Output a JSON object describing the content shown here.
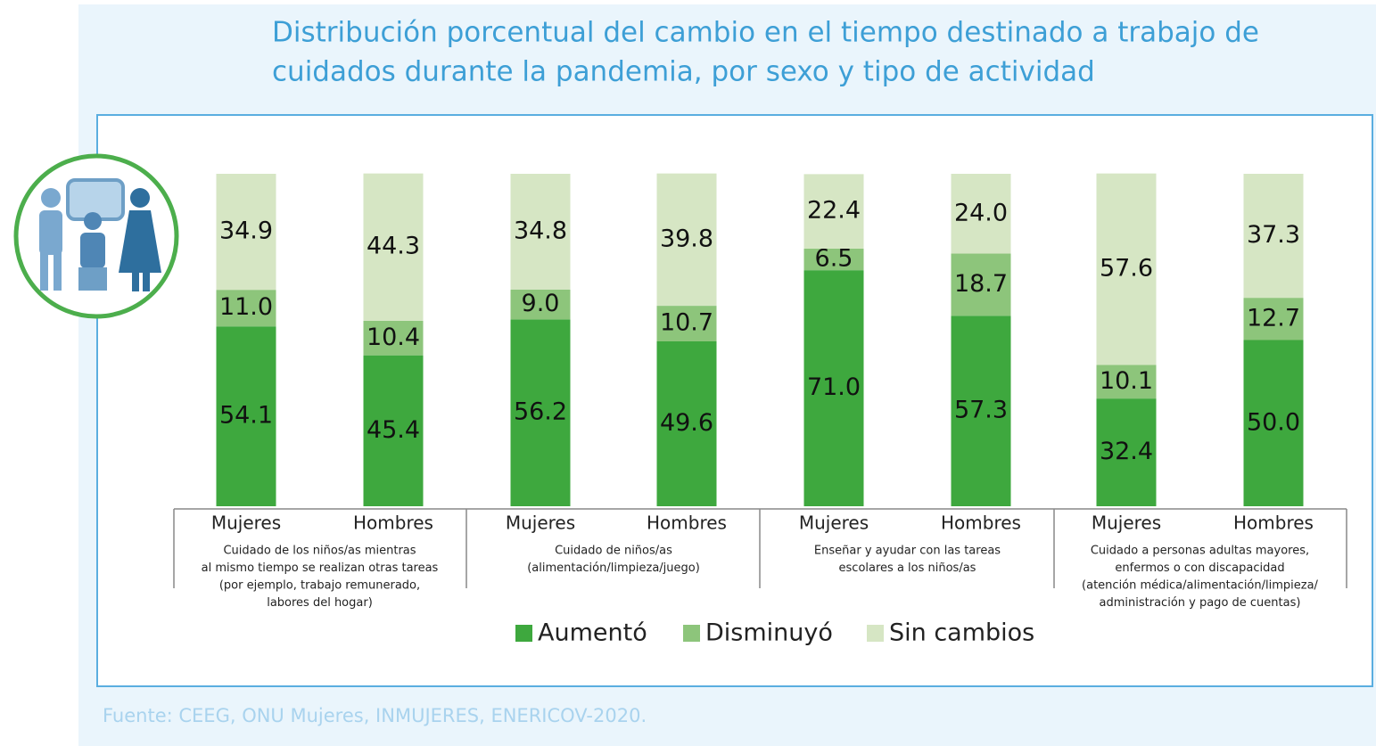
{
  "chart_data": {
    "type": "stacked-bar",
    "title": [
      "Distribución porcentual del cambio en el tiempo destinado a trabajo de",
      "cuidados durante la pandemia, por  sexo y tipo de actividad"
    ],
    "categories": [
      "Mujeres",
      "Hombres",
      "Mujeres",
      "Hombres",
      "Mujeres",
      "Hombres",
      "Mujeres",
      "Hombres"
    ],
    "groups": [
      [
        "Cuidado de los niños/as mientras",
        "al mismo tiempo se realizan otras tareas",
        "(por ejemplo, trabajo remunerado,",
        "labores del hogar)"
      ],
      [
        "Cuidado de niños/as",
        "(alimentación/limpieza/juego)"
      ],
      [
        "Enseñar y ayudar con las tareas",
        "escolares a los niños/as"
      ],
      [
        "Cuidado a personas adultas mayores,",
        "enfermos o con discapacidad",
        "(atención médica/alimentación/limpieza/",
        "administración y pago de cuentas)"
      ]
    ],
    "series": [
      {
        "name": "Aumentó",
        "color": "#3ea83e",
        "values": [
          54.1,
          45.4,
          56.2,
          49.6,
          71.0,
          57.3,
          32.4,
          50.0
        ],
        "value_labels": [
          "54.1",
          "45.4",
          "56.2",
          "49.6",
          "71.0",
          "57.3",
          "32.4",
          "50.0"
        ]
      },
      {
        "name": "Disminuyó",
        "color": "#8dc57b",
        "values": [
          11.0,
          10.4,
          9.0,
          10.7,
          6.5,
          18.7,
          10.1,
          12.7
        ],
        "value_labels": [
          "11.0",
          "10.4",
          "9.0",
          "10.7",
          "6.5",
          "18.7",
          "10.1",
          "12.7"
        ]
      },
      {
        "name": "Sin cambios",
        "color": "#d6e6c4",
        "values": [
          34.9,
          44.3,
          34.8,
          39.8,
          22.4,
          24.0,
          57.6,
          37.3
        ],
        "value_labels": [
          "34.9",
          "44.3",
          "34.8",
          "39.8",
          "22.4",
          "24.0",
          "57.6",
          "37.3"
        ]
      }
    ],
    "ylim": [
      0,
      100
    ],
    "source": "Fuente: CEEG, ONU Mujeres, INMUJERES, ENERICOV-2020."
  }
}
